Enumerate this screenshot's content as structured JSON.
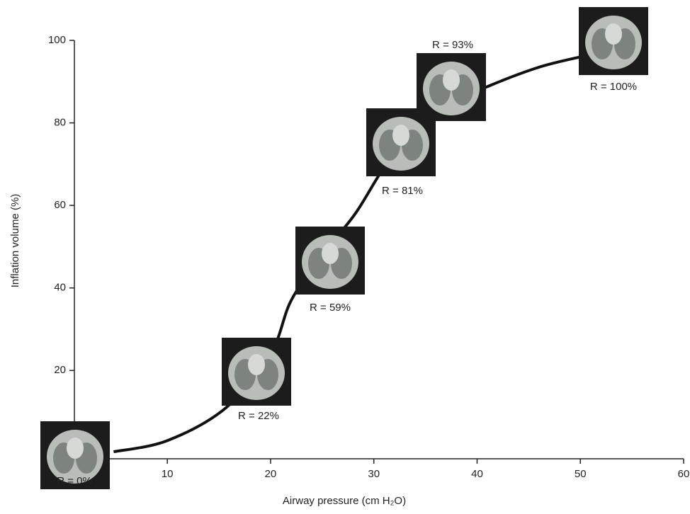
{
  "chart_data": {
    "type": "line",
    "x_label": "Airway pressure (cm H₂O)",
    "y_label": "Inflation volume (%)",
    "x": [
      4.8,
      10,
      15.7,
      20,
      22,
      25,
      28.2,
      31.2,
      35,
      41.2,
      46,
      50
    ],
    "series": [
      {
        "color": "#111111",
        "values": [
          0.3,
          3,
          11,
          24,
          37,
          48,
          58,
          70,
          82,
          89,
          93.5,
          96
        ]
      }
    ],
    "xlim": [
      1,
      60
    ],
    "xticks": [
      10,
      20,
      30,
      40,
      50,
      60
    ],
    "ylim": [
      -1.4,
      100
    ],
    "yticks": [
      20,
      40,
      60,
      80,
      100
    ],
    "annotations": [
      "R = 0%",
      "R = 22%",
      "R = 59%",
      "R = 81%",
      "R = 93%",
      "R = 100%"
    ]
  }
}
